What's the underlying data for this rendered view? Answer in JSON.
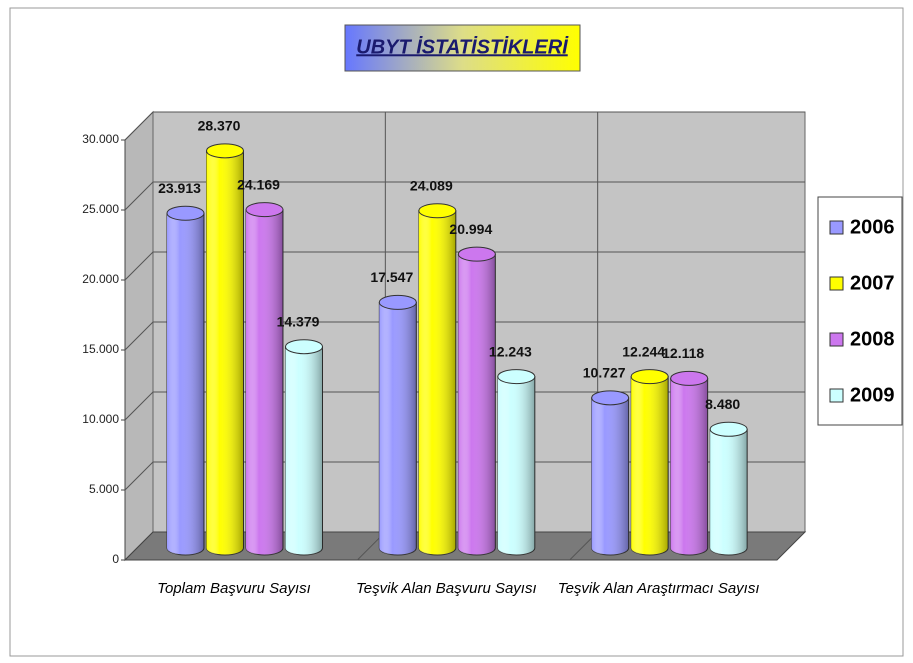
{
  "chart_data": {
    "type": "bar3d",
    "title": "UBYT İSTATİSTİKLERİ",
    "categories": [
      "Toplam Başvuru Sayısı",
      "Teşvik Alan Başvuru Sayısı",
      "Teşvik Alan Araştırmacı Sayısı"
    ],
    "series": [
      {
        "name": "2006",
        "color": "#9999ff",
        "values": [
          23913,
          17547,
          10727
        ],
        "value_labels": [
          "23.913",
          "17.547",
          "10.727"
        ]
      },
      {
        "name": "2007",
        "color": "#ffff00",
        "values": [
          28370,
          24089,
          12244
        ],
        "value_labels": [
          "28.370",
          "24.089",
          "12.244"
        ]
      },
      {
        "name": "2008",
        "color": "#cc77ee",
        "values": [
          24169,
          20994,
          12118
        ],
        "value_labels": [
          "24.169",
          "20.994",
          "12.118"
        ]
      },
      {
        "name": "2009",
        "color": "#ccffff",
        "values": [
          14379,
          12243,
          8480
        ],
        "value_labels": [
          "14.379",
          "12.243",
          "8.480"
        ]
      }
    ],
    "ylim": [
      0,
      30000
    ],
    "yticks": [
      0,
      {
        "value": 5000,
        "label": "5.000"
      },
      {
        "value": 10000,
        "label": "10.000"
      },
      {
        "value": 15000,
        "label": "15.000"
      },
      {
        "value": 20000,
        "label": "20.000"
      },
      {
        "value": 25000,
        "label": "25.000"
      },
      {
        "value": 30000,
        "label": "30.000"
      }
    ],
    "grid": true,
    "legend": "right"
  }
}
